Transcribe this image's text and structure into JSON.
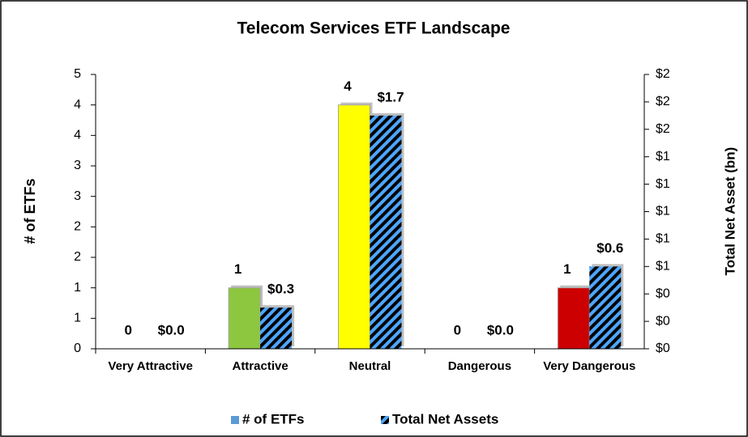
{
  "chart_data": {
    "type": "bar",
    "title": "Telecom Services ETF Landscape",
    "y_label": "# of ETFs",
    "y2_label": "Total Net Asset (bn)",
    "categories": [
      "Very Attractive",
      "Attractive",
      "Neutral",
      "Dangerous",
      "Very Dangerous"
    ],
    "series": [
      {
        "name": "# of ETFs",
        "color": "#5b9bd5",
        "point_colors": [
          "#a6a6a6",
          "#8dc63f",
          "#ffff00",
          "#a6a6a6",
          "#cc0000"
        ],
        "values": [
          0,
          1,
          4,
          0,
          1
        ]
      },
      {
        "name": "Total Net Assets",
        "color": "#4da6ff",
        "pattern": "diagonal-stripes",
        "axis": "y2",
        "values": [
          0,
          0.3,
          1.7,
          0,
          0.6
        ],
        "value_labels": [
          "$0.0",
          "$0.3",
          "$1.7",
          "$0.0",
          "$0.6"
        ]
      }
    ],
    "ylim": [
      0,
      4.5
    ],
    "yticks": [
      0,
      {
        "value": 0.5,
        "label": "1"
      },
      1,
      {
        "value": 1.5,
        "label": "2"
      },
      2,
      {
        "value": 2.5,
        "label": "3"
      },
      3,
      {
        "value": 3.5,
        "label": "4"
      },
      4,
      {
        "value": 4.5,
        "label": "5"
      }
    ],
    "y2lim": [
      0,
      2
    ],
    "y2ticks": [
      {
        "value": 0,
        "label": "$0"
      },
      {
        "value": 0.2,
        "label": "$0"
      },
      {
        "value": 0.4,
        "label": "$0"
      },
      {
        "value": 0.6,
        "label": "$1"
      },
      {
        "value": 0.8,
        "label": "$1"
      },
      {
        "value": 1.0,
        "label": "$1"
      },
      {
        "value": 1.2,
        "label": "$1"
      },
      {
        "value": 1.4,
        "label": "$1"
      },
      {
        "value": 1.6,
        "label": "$2"
      },
      {
        "value": 1.8,
        "label": "$2"
      },
      {
        "value": 2.0,
        "label": "$2"
      }
    ],
    "legend": "bottom"
  }
}
